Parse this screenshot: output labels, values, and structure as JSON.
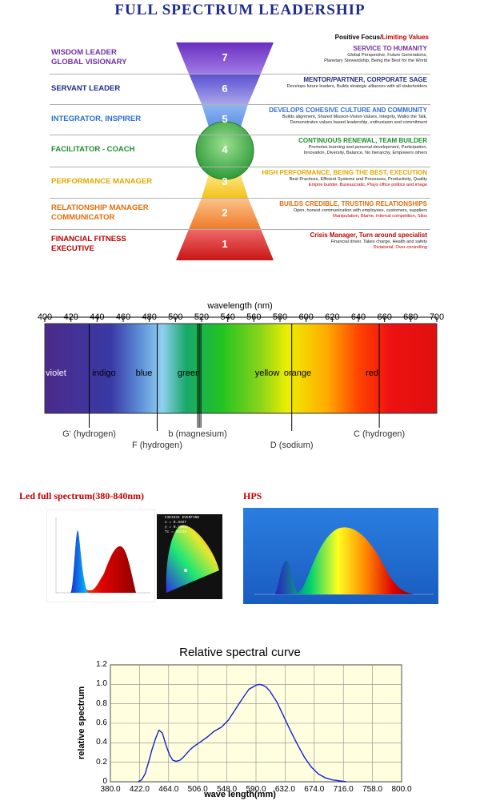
{
  "leadership": {
    "title": "FULL SPECTRUM LEADERSHIP",
    "header_positive": "Positive Focus/",
    "header_limiting": "Limiting Values",
    "levels": [
      {
        "num": "7",
        "left": [
          "WISDOM LEADER",
          "GLOBAL VISIONARY"
        ],
        "left_color": "#7030a0",
        "right_title": "SERVICE TO HUMANITY",
        "right_color": "#7030a0",
        "lines": [
          "Global Perspective, Future Generations,",
          "Planetary Stewardship, Being the Best for the World"
        ],
        "neg": ""
      },
      {
        "num": "6",
        "left": [
          "SERVANT LEADER"
        ],
        "left_color": "#1f2d8a",
        "right_title": "MENTOR/PARTNER, CORPORATE SAGE",
        "right_color": "#1f2d8a",
        "lines": [
          "Develops future leaders, Builds strategic alliances with all stakeholders"
        ],
        "neg": ""
      },
      {
        "num": "5",
        "left": [
          "INTEGRATOR, INSPIRER"
        ],
        "left_color": "#2e6fd1",
        "right_title": "DEVELOPS COHESIVE CULTURE AND COMMUNITY",
        "right_color": "#2e6fd1",
        "lines": [
          "Builds alignment, Shared Mission-Vision-Values, Integrity, Walks the Talk,",
          "Demonstrates values based leadership, enthusiasm and commitment"
        ],
        "neg": ""
      },
      {
        "num": "4",
        "left": [
          "FACILITATOR - COACH"
        ],
        "left_color": "#1d8f2e",
        "right_title": "CONTINUOUS RENEWAL, TEAM BUILDER",
        "right_color": "#1d8f2e",
        "lines": [
          "Promotes learning and personal development, Participation,",
          "Innovation, Diversity, Balance, No hierarchy, Empowers others"
        ],
        "neg": ""
      },
      {
        "num": "3",
        "left": [
          "PERFORMANCE MANAGER"
        ],
        "left_color": "#e0a800",
        "right_title": "HIGH PERFORMANCE, BEING THE BEST, EXECUTION",
        "right_color": "#e0a800",
        "lines": [
          "Best Practices, Efficient Systems and Processes, Productivity, Quality"
        ],
        "neg": "Empire builder, Bureaucratic, Plays office politics and image"
      },
      {
        "num": "2",
        "left": [
          "RELATIONSHIP MANAGER",
          "COMMUNICATOR"
        ],
        "left_color": "#e46c0a",
        "right_title": "BUILDS CREDIBLE, TRUSTING RELATIONSHIPS",
        "right_color": "#e46c0a",
        "lines": [
          "Open, honest communication with employees, customers, suppliers"
        ],
        "neg": "Manipulation, Blame, Internal competition, Silos"
      },
      {
        "num": "1",
        "left": [
          "FINANCIAL FITNESS",
          "EXECUTIVE"
        ],
        "left_color": "#c00000",
        "right_title": "Crisis Manager, Turn around specialist",
        "right_color": "#c00000",
        "lines": [
          "Financial driver, Takes charge, Health and safety"
        ],
        "neg": "Dictatorial, Over-controlling"
      }
    ]
  },
  "spectrum": {
    "axis_title": "wavelength (nm)",
    "ticks": [
      "400",
      "420",
      "440",
      "460",
      "480",
      "500",
      "520",
      "540",
      "560",
      "580",
      "600",
      "620",
      "640",
      "660",
      "680",
      "700"
    ],
    "bands": [
      "violet",
      "indigo",
      "blue",
      "green",
      "yellow",
      "orange",
      "red"
    ],
    "lines": [
      {
        "label": "G' (hydrogen)",
        "nm": 434
      },
      {
        "label": "F (hydrogen)",
        "nm": 486
      },
      {
        "label": "b (magnesium)",
        "nm": 517
      },
      {
        "label": "D (sodium)",
        "nm": 589
      },
      {
        "label": "C (hydrogen)",
        "nm": 656
      }
    ]
  },
  "products": {
    "led_title": "Led full spectrum(380-840nm)",
    "hps_title": "HPS",
    "cie_title": "CIE1931 EVERFINE",
    "cie_x": "x = 0.3467",
    "cie_y": "y = 0.1652",
    "cie_tc": "Tc = 15436"
  },
  "chart_data": {
    "type": "line",
    "title": "Relative spectral curve",
    "xlabel": "wave length(mm)",
    "ylabel": "relative spectrum",
    "xlim": [
      380,
      800
    ],
    "ylim": [
      0,
      1.2
    ],
    "x_ticks": [
      "380.0",
      "422.0",
      "464.0",
      "506.0",
      "548.0",
      "590.0",
      "632.0",
      "674.0",
      "716.0",
      "758.0",
      "800.0"
    ],
    "y_ticks": [
      "0",
      "0.2",
      "0.4",
      "0.6",
      "0.8",
      "1.0",
      "1.2"
    ],
    "grid": true,
    "series": [
      {
        "x": [
          420,
          425,
          430,
          435,
          440,
          445,
          450,
          455,
          460,
          465,
          470,
          475,
          480,
          485,
          490,
          495,
          500,
          510,
          520,
          530,
          540,
          550,
          560,
          570,
          580,
          590,
          595,
          600,
          605,
          610,
          620,
          630,
          640,
          650,
          660,
          670,
          680,
          690,
          700,
          710,
          720
        ],
        "y": [
          0.0,
          0.02,
          0.08,
          0.2,
          0.33,
          0.44,
          0.53,
          0.5,
          0.38,
          0.28,
          0.22,
          0.21,
          0.22,
          0.25,
          0.29,
          0.33,
          0.36,
          0.41,
          0.46,
          0.52,
          0.56,
          0.63,
          0.74,
          0.85,
          0.95,
          0.99,
          1.0,
          0.99,
          0.97,
          0.93,
          0.82,
          0.67,
          0.52,
          0.38,
          0.25,
          0.15,
          0.08,
          0.04,
          0.02,
          0.01,
          0.0
        ]
      }
    ]
  }
}
